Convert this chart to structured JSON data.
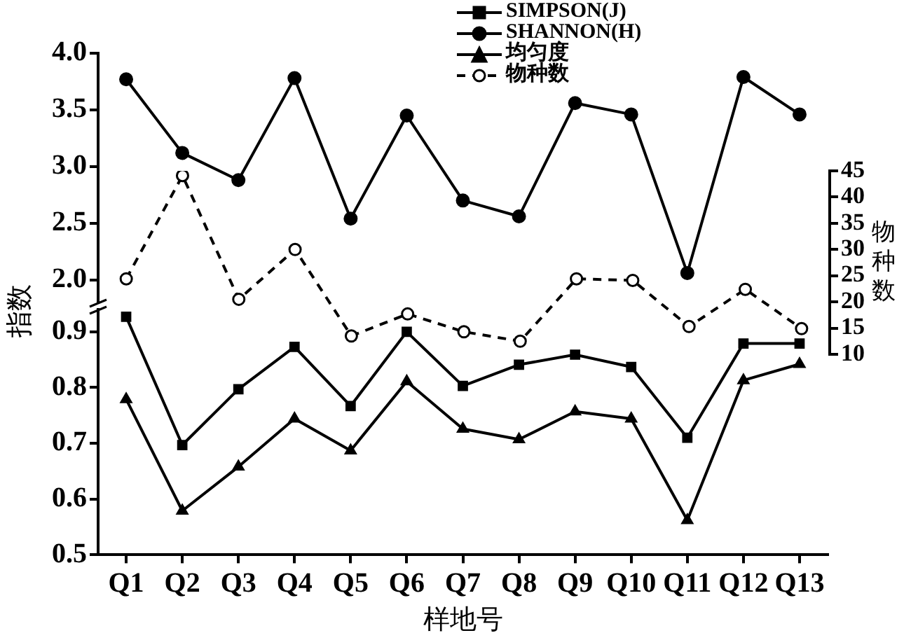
{
  "chart_data": [
    {
      "type": "line",
      "categories": [
        null,
        null,
        null,
        null,
        null,
        null,
        null,
        null,
        null,
        null,
        null,
        null,
        null
      ],
      "series": [
        {
          "name": "SHANNON(H)",
          "color": "#000000",
          "marker": "circle",
          "values": [
            3.77,
            3.12,
            2.88,
            3.78,
            2.54,
            3.45,
            2.7,
            2.56,
            3.56,
            3.46,
            2.06,
            3.79,
            3.46
          ]
        }
      ],
      "ylim": [
        1.8,
        4.0
      ],
      "yticks": [
        {
          "value": 2,
          "label": "2.0"
        },
        2.5,
        {
          "value": 3,
          "label": "3.0"
        },
        3.5,
        {
          "value": 4,
          "label": "4.0"
        }
      ],
      "tick_labels": "y",
      "grid": false,
      "legend": "top"
    },
    {
      "type": "line",
      "xlabel": "样地号",
      "ylabel": "指数",
      "categories": [
        "Q1",
        "Q2",
        "Q3",
        "Q4",
        "Q5",
        "Q6",
        "Q7",
        "Q8",
        "Q9",
        "Q10",
        "Q11",
        "Q12",
        "Q13"
      ],
      "series": [
        {
          "name": "SIMPSON(J)",
          "color": "#000000",
          "marker": "square",
          "values": [
            0.927,
            0.697,
            0.797,
            0.873,
            0.767,
            0.9,
            0.803,
            0.841,
            0.859,
            0.837,
            0.71,
            0.879,
            0.879
          ]
        },
        {
          "name": "均匀度",
          "color": "#000000",
          "marker": "triangle",
          "values": [
            0.779,
            0.579,
            0.658,
            0.744,
            0.687,
            0.811,
            0.726,
            0.707,
            0.757,
            0.744,
            0.562,
            0.813,
            0.842
          ]
        }
      ],
      "ylim": [
        0.5,
        0.94
      ],
      "yticks": [
        0.5,
        0.6,
        0.7,
        0.8,
        0.9
      ],
      "grid": false,
      "legend": "top"
    },
    {
      "type": "line",
      "ylabel": "物种数",
      "categories": [
        null,
        null,
        null,
        null,
        null,
        null,
        null,
        null,
        null,
        null,
        null,
        null,
        null
      ],
      "series": [
        {
          "name": "物种数",
          "color": "#000000",
          "marker": "circle",
          "line_style": "dashed",
          "values": [
            24.4,
            44.1,
            20.5,
            30,
            13.5,
            17.7,
            14.3,
            12.5,
            24.4,
            24.1,
            15.3,
            22.4,
            14.9
          ]
        }
      ],
      "ylim": [
        10,
        45
      ],
      "yticks": [
        10,
        15,
        20,
        25,
        30,
        35,
        40,
        45
      ],
      "tick_labels": "y",
      "grid": false,
      "legend": "top"
    }
  ]
}
